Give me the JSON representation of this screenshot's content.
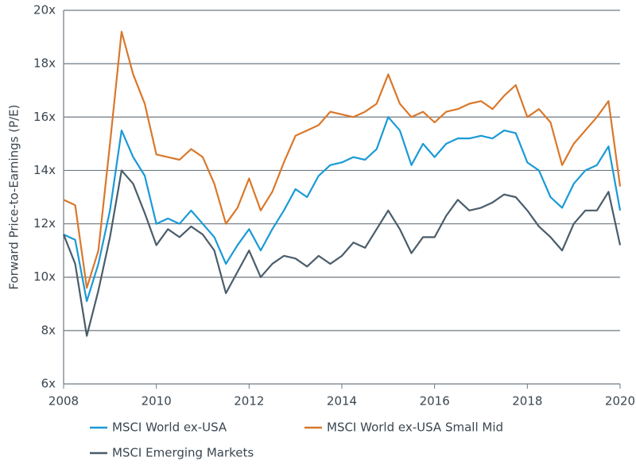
{
  "chart_data": {
    "type": "line",
    "y_label": "Forward Price-to-Earnings (P/E)",
    "x": [
      2008.0,
      2008.25,
      2008.5,
      2008.75,
      2009.0,
      2009.25,
      2009.5,
      2009.75,
      2010.0,
      2010.25,
      2010.5,
      2010.75,
      2011.0,
      2011.25,
      2011.5,
      2011.75,
      2012.0,
      2012.25,
      2012.5,
      2012.75,
      2013.0,
      2013.25,
      2013.5,
      2013.75,
      2014.0,
      2014.25,
      2014.5,
      2014.75,
      2015.0,
      2015.25,
      2015.5,
      2015.75,
      2016.0,
      2016.25,
      2016.5,
      2016.75,
      2017.0,
      2017.25,
      2017.5,
      2017.75,
      2018.0,
      2018.25,
      2018.5,
      2018.75,
      2019.0,
      2019.25,
      2019.5,
      2019.75,
      2020.0
    ],
    "series": [
      {
        "name": "MSCI World ex-USA",
        "color": "#1a9ad6",
        "values": [
          11.6,
          11.4,
          9.1,
          10.5,
          12.5,
          15.5,
          14.5,
          13.8,
          12.0,
          12.2,
          12.0,
          12.5,
          12.0,
          11.5,
          10.5,
          11.2,
          11.8,
          11.0,
          11.8,
          12.5,
          13.3,
          13.0,
          13.8,
          14.2,
          14.3,
          14.5,
          14.4,
          14.8,
          16.0,
          15.5,
          14.2,
          15.0,
          14.5,
          15.0,
          15.2,
          15.2,
          15.3,
          15.2,
          15.5,
          15.4,
          14.3,
          14.0,
          13.0,
          12.6,
          13.5,
          14.0,
          14.2,
          14.9,
          12.5
        ]
      },
      {
        "name": "MSCI World ex-USA Small Mid",
        "color": "#d9782b",
        "values": [
          12.9,
          12.7,
          9.6,
          11.0,
          15.0,
          19.2,
          17.6,
          16.5,
          14.6,
          14.5,
          14.4,
          14.8,
          14.5,
          13.5,
          12.0,
          12.6,
          13.7,
          12.5,
          13.2,
          14.3,
          15.3,
          15.5,
          15.7,
          16.2,
          16.1,
          16.0,
          16.2,
          16.5,
          17.6,
          16.5,
          16.0,
          16.2,
          15.8,
          16.2,
          16.3,
          16.5,
          16.6,
          16.3,
          16.8,
          17.2,
          16.0,
          16.3,
          15.8,
          14.2,
          15.0,
          15.5,
          16.0,
          16.6,
          13.4
        ]
      },
      {
        "name": "MSCI Emerging Markets",
        "color": "#4a5d6b",
        "values": [
          11.6,
          10.5,
          7.8,
          9.5,
          11.5,
          14.0,
          13.5,
          12.4,
          11.2,
          11.8,
          11.5,
          11.9,
          11.6,
          11.0,
          9.4,
          10.2,
          11.0,
          10.0,
          10.5,
          10.8,
          10.7,
          10.4,
          10.8,
          10.5,
          10.8,
          11.3,
          11.1,
          11.8,
          12.5,
          11.8,
          10.9,
          11.5,
          11.5,
          12.3,
          12.9,
          12.5,
          12.6,
          12.8,
          13.1,
          13.0,
          12.5,
          11.9,
          11.5,
          11.0,
          12.0,
          12.5,
          12.5,
          13.2,
          11.2
        ]
      }
    ],
    "xlim": [
      2008,
      2020
    ],
    "xticks": [
      2008,
      2010,
      2012,
      2014,
      2016,
      2018,
      2020
    ],
    "ylim": [
      6,
      20
    ],
    "yticks": [
      {
        "value": 6,
        "label": "6x"
      },
      {
        "value": 8,
        "label": "8x"
      },
      {
        "value": 10,
        "label": "10x"
      },
      {
        "value": 12,
        "label": "12x"
      },
      {
        "value": 14,
        "label": "14x"
      },
      {
        "value": 16,
        "label": "16x"
      },
      {
        "value": 18,
        "label": "18x"
      },
      {
        "value": 20,
        "label": "20x"
      }
    ],
    "grid": true
  }
}
